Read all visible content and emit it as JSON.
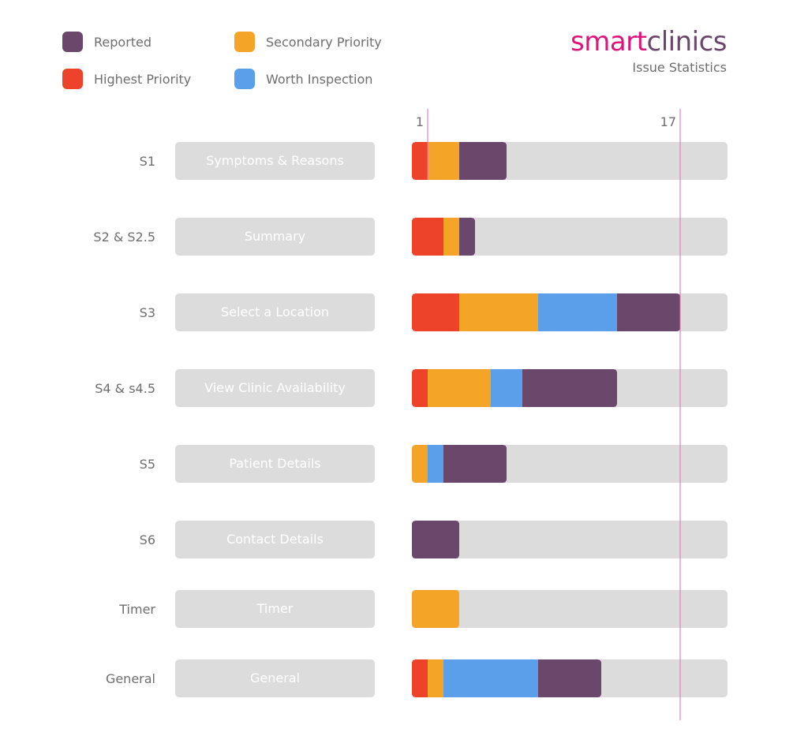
{
  "brand": {
    "name_part1": "smart",
    "name_part2": "clinics",
    "subtitle": "Issue Statistics",
    "color1": "#e0137a",
    "color2": "#6b476b"
  },
  "legend": [
    {
      "label": "Reported",
      "color": "#6b476b"
    },
    {
      "label": "Secondary Priority",
      "color": "#f4a426"
    },
    {
      "label": "Highest Priority",
      "color": "#ee432b"
    },
    {
      "label": "Worth Inspection",
      "color": "#5b9ee9"
    }
  ],
  "chart_data": {
    "type": "bar",
    "orientation": "horizontal",
    "stacked": true,
    "xlim": [
      0,
      20
    ],
    "reference_lines": [
      {
        "value": 1,
        "label": "1"
      },
      {
        "value": 17,
        "label": "17"
      }
    ],
    "categories": [
      "S1",
      "S2 & S2.5",
      "S3",
      "S4 & s4.5",
      "S5",
      "S6",
      "Timer",
      "General"
    ],
    "category_names": [
      "Symptoms & Reasons",
      "Summary",
      "Select a Location",
      "View Clinic Availability",
      "Patient Details",
      "Contact Details",
      "Timer",
      "General"
    ],
    "series": [
      {
        "name": "Highest Priority",
        "color": "#ee432b",
        "values": [
          1,
          2,
          3,
          1,
          0,
          0,
          0,
          1
        ]
      },
      {
        "name": "Secondary Priority",
        "color": "#f4a426",
        "values": [
          2,
          1,
          5,
          4,
          1,
          0,
          3,
          1
        ]
      },
      {
        "name": "Worth Inspection",
        "color": "#5b9ee9",
        "values": [
          0,
          0,
          5,
          2,
          1,
          0,
          0,
          6
        ]
      },
      {
        "name": "Reported",
        "color": "#6b476b",
        "values": [
          3,
          1,
          4,
          6,
          4,
          3,
          0,
          4
        ]
      }
    ],
    "track_color": "#dcdcdc",
    "reference_color": "#f06ab0"
  }
}
